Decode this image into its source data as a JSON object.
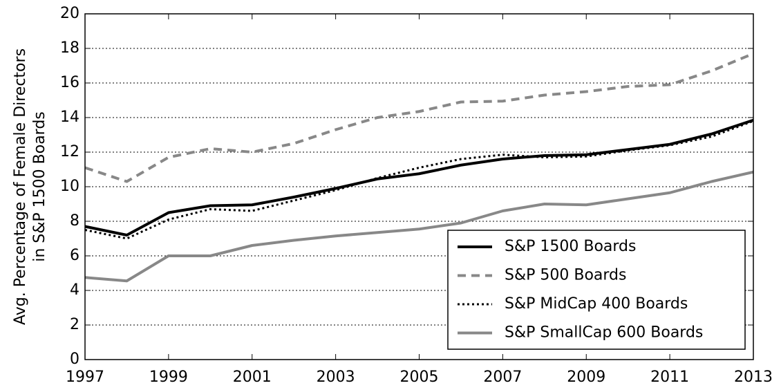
{
  "chart_data": {
    "type": "line",
    "ylabel": [
      "Avg. Percentage of Female Directors",
      "in S&P 1500 Boards"
    ],
    "x": [
      1997,
      1998,
      1999,
      2000,
      2001,
      2002,
      2003,
      2004,
      2005,
      2006,
      2007,
      2008,
      2009,
      2010,
      2011,
      2012,
      2013
    ],
    "series": [
      {
        "name": "S&P 1500 Boards",
        "color": "#000000",
        "linestyle": "solid",
        "width": 4,
        "values": [
          7.7,
          7.2,
          8.5,
          8.9,
          8.95,
          9.4,
          9.9,
          10.45,
          10.75,
          11.25,
          11.6,
          11.8,
          11.85,
          12.15,
          12.45,
          13.05,
          13.85
        ]
      },
      {
        "name": "S&P 500 Boards",
        "color": "#888888",
        "linestyle": "dashed",
        "width": 4,
        "values": [
          11.1,
          10.3,
          11.7,
          12.2,
          12.0,
          12.5,
          13.3,
          14.0,
          14.35,
          14.9,
          14.95,
          15.3,
          15.5,
          15.8,
          15.9,
          16.7,
          17.7
        ]
      },
      {
        "name": "S&P MidCap 400 Boards",
        "color": "#000000",
        "linestyle": "dotted",
        "width": 3,
        "values": [
          7.5,
          7.0,
          8.1,
          8.7,
          8.6,
          9.2,
          9.8,
          10.5,
          11.1,
          11.6,
          11.85,
          11.7,
          11.75,
          12.1,
          12.4,
          12.9,
          13.8
        ]
      },
      {
        "name": "S&P SmallCap 600 Boards",
        "color": "#888888",
        "linestyle": "solid",
        "width": 4,
        "values": [
          4.75,
          4.55,
          6.0,
          6.0,
          6.6,
          6.9,
          7.15,
          7.35,
          7.55,
          7.9,
          8.6,
          9.0,
          8.95,
          9.3,
          9.65,
          10.3,
          10.85
        ]
      }
    ],
    "xlim": [
      1997,
      2013
    ],
    "xticks": [
      1997,
      1999,
      2001,
      2003,
      2005,
      2007,
      2009,
      2011,
      2013
    ],
    "ylim": [
      0,
      20
    ],
    "yticks": [
      0,
      2,
      4,
      6,
      8,
      10,
      12,
      14,
      16,
      18,
      20
    ],
    "grid": true,
    "legend": "lower right"
  }
}
